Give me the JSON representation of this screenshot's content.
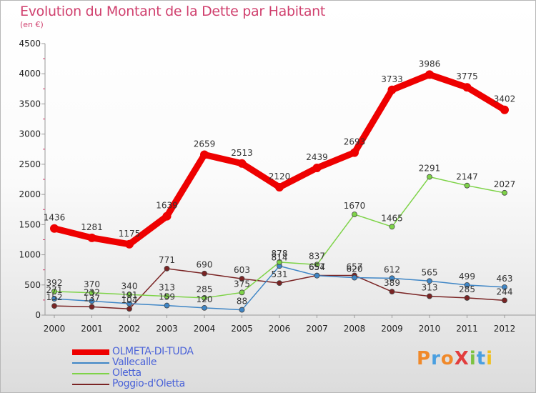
{
  "header": {
    "title": "Evolution du Montant de la Dette par Habitant",
    "subtitle": "(en €)"
  },
  "logo": {
    "text": "ProXiti",
    "letter_colors": [
      "#f0892a",
      "#4a9fe0",
      "#f0892a",
      "#e23d3d",
      "#7cc242",
      "#4a9fe0",
      "#f0c020"
    ]
  },
  "chart_data": {
    "type": "line",
    "title": "Evolution du Montant de la Dette par Habitant",
    "subtitle": "(en €)",
    "xlabel": "",
    "ylabel": "",
    "x": [
      2000,
      2001,
      2002,
      2003,
      2004,
      2005,
      2006,
      2007,
      2008,
      2009,
      2010,
      2011,
      2012
    ],
    "ylim": [
      0,
      4500
    ],
    "yticks": [
      0,
      500,
      1000,
      1500,
      2000,
      2500,
      3000,
      3500,
      4000,
      4500
    ],
    "grid": false,
    "legend_position": "bottom-left",
    "series": [
      {
        "name": "OLMETA-DI-TUDA",
        "color": "#ee0000",
        "values": [
          1436,
          1281,
          1175,
          1639,
          2659,
          2513,
          2120,
          2439,
          2693,
          3733,
          3986,
          3775,
          3402
        ],
        "labels": [
          "1436",
          "1281",
          "1175",
          "1639",
          "2659",
          "2513",
          "2120",
          "2439",
          "2693",
          "3733",
          "3986",
          "3775",
          "3402"
        ]
      },
      {
        "name": "Vallecalle",
        "color": "#3f86c6",
        "values": [
          271,
          232,
          191,
          159,
          120,
          88,
          814,
          654,
          620,
          612,
          565,
          499,
          463
        ],
        "labels": [
          "271",
          "232",
          "191",
          "159",
          "120",
          "88",
          "814",
          "654",
          "620",
          "612",
          "565",
          "499",
          "463"
        ]
      },
      {
        "name": "Oletta",
        "color": "#7ed348",
        "values": [
          392,
          370,
          340,
          313,
          285,
          375,
          878,
          837,
          1670,
          1465,
          2291,
          2147,
          2027
        ],
        "labels": [
          "392",
          "370",
          "340",
          "313",
          "285",
          "375",
          "878",
          "837",
          "1670",
          "1465",
          "2291",
          "2147",
          "2027"
        ]
      },
      {
        "name": "Poggio-d'Oletta",
        "color": "#7a2424",
        "values": [
          152,
          137,
          104,
          771,
          690,
          603,
          531,
          657,
          657,
          389,
          313,
          285,
          244
        ],
        "labels": [
          "152",
          "137",
          "104",
          "771",
          "690",
          "603",
          "531",
          "657",
          "657",
          "389",
          "313",
          "285",
          "244"
        ]
      }
    ]
  },
  "legend": {
    "items": [
      {
        "label": "OLMETA-DI-TUDA",
        "color": "#ee0000",
        "thickness": 8
      },
      {
        "label": "Vallecalle",
        "color": "#3f86c6",
        "thickness": 2
      },
      {
        "label": "Oletta",
        "color": "#7ed348",
        "thickness": 2
      },
      {
        "label": "Poggio-d'Oletta",
        "color": "#7a2424",
        "thickness": 2
      }
    ]
  }
}
